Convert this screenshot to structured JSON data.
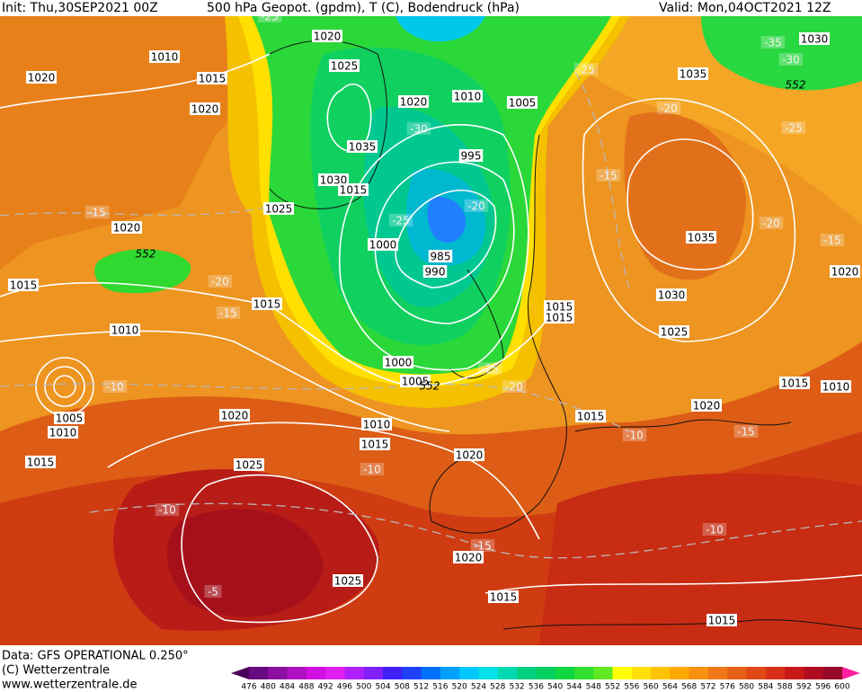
{
  "header": {
    "init": "Init: Thu,30SEP2021 00Z",
    "title": "500 hPa Geopot. (gpdm), T (C), Bodendruck (hPa)",
    "valid": "Valid: Mon,04OCT2021 12Z"
  },
  "footer": {
    "data": "Data: GFS OPERATIONAL 0.250°",
    "copyright": "(C) Wetterzentrale",
    "url": "www.wetterzentrale.de"
  },
  "legend": {
    "ticks": [
      476,
      480,
      484,
      488,
      492,
      496,
      500,
      504,
      508,
      512,
      516,
      520,
      524,
      528,
      532,
      536,
      540,
      544,
      548,
      552,
      556,
      560,
      564,
      568,
      572,
      576,
      580,
      584,
      588,
      592,
      596,
      600
    ],
    "colors": [
      "#4a0058",
      "#6a0a80",
      "#8c10a0",
      "#b010c0",
      "#d010e0",
      "#e020f0",
      "#b020ff",
      "#8020ff",
      "#4020ff",
      "#2040ff",
      "#0070ff",
      "#00a0ff",
      "#00c8ff",
      "#00e0e8",
      "#00d8b0",
      "#00d080",
      "#00d060",
      "#10d840",
      "#30e030",
      "#60e820",
      "#ffff00",
      "#ffe000",
      "#ffc400",
      "#ffa800",
      "#f89010",
      "#f07818",
      "#e86018",
      "#e04818",
      "#d83018",
      "#c81818",
      "#b00c20",
      "#980828",
      "#ff20a0"
    ]
  },
  "map": {
    "pressure_labels": [
      "1020",
      "1010",
      "1015",
      "1020",
      "1025",
      "1020",
      "1020",
      "1010",
      "1005",
      "1035",
      "1030",
      "1015",
      "1025",
      "995",
      "1020",
      "1000",
      "985",
      "990",
      "1015",
      "1015",
      "1010",
      "1015",
      "1015",
      "1000",
      "1005",
      "1005",
      "1010",
      "1020",
      "1010",
      "1015",
      "1020",
      "1025",
      "1015",
      "1035",
      "1030",
      "1035",
      "1020",
      "1030",
      "1025",
      "1015",
      "1010",
      "1020",
      "1015",
      "1020",
      "1025",
      "1015",
      "1015"
    ],
    "temperature_labels": [
      "-25",
      "-35",
      "-30",
      "-25",
      "-20",
      "-30",
      "-25",
      "-15",
      "-25",
      "-20",
      "-15",
      "-20",
      "-15",
      "-20",
      "-15",
      "-10",
      "-25",
      "-20",
      "-10",
      "-15",
      "-10",
      "-10",
      "-15",
      "-10",
      "-5"
    ],
    "height_labels": [
      "552",
      "552",
      "552"
    ]
  }
}
